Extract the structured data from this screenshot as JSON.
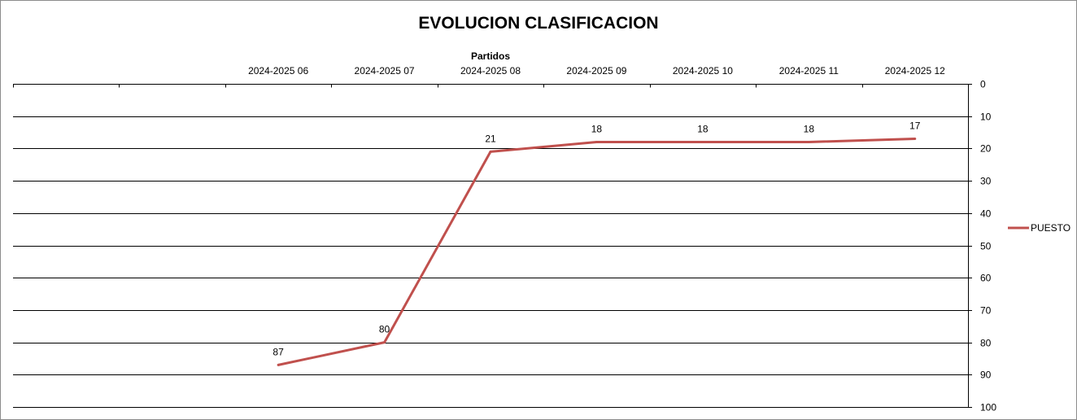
{
  "chart_data": {
    "type": "line",
    "title": "EVOLUCION CLASIFICACION",
    "xlabel": "Partidos",
    "ylabel": "",
    "x_axis_position": "top",
    "y_axis_position": "right",
    "y_inverted": true,
    "ylim": [
      0,
      100
    ],
    "y_ticks": [
      0,
      10,
      20,
      30,
      40,
      50,
      60,
      70,
      80,
      90,
      100
    ],
    "grid": true,
    "legend_position": "right",
    "categories": [
      "",
      "",
      "2024-2025 06",
      "2024-2025 07",
      "2024-2025 08",
      "2024-2025 09",
      "2024-2025 10",
      "2024-2025 11",
      "2024-2025 12"
    ],
    "series": [
      {
        "name": "PUESTO",
        "color": "#c0504d",
        "values": [
          null,
          null,
          87,
          80,
          21,
          18,
          18,
          18,
          17
        ]
      }
    ]
  }
}
